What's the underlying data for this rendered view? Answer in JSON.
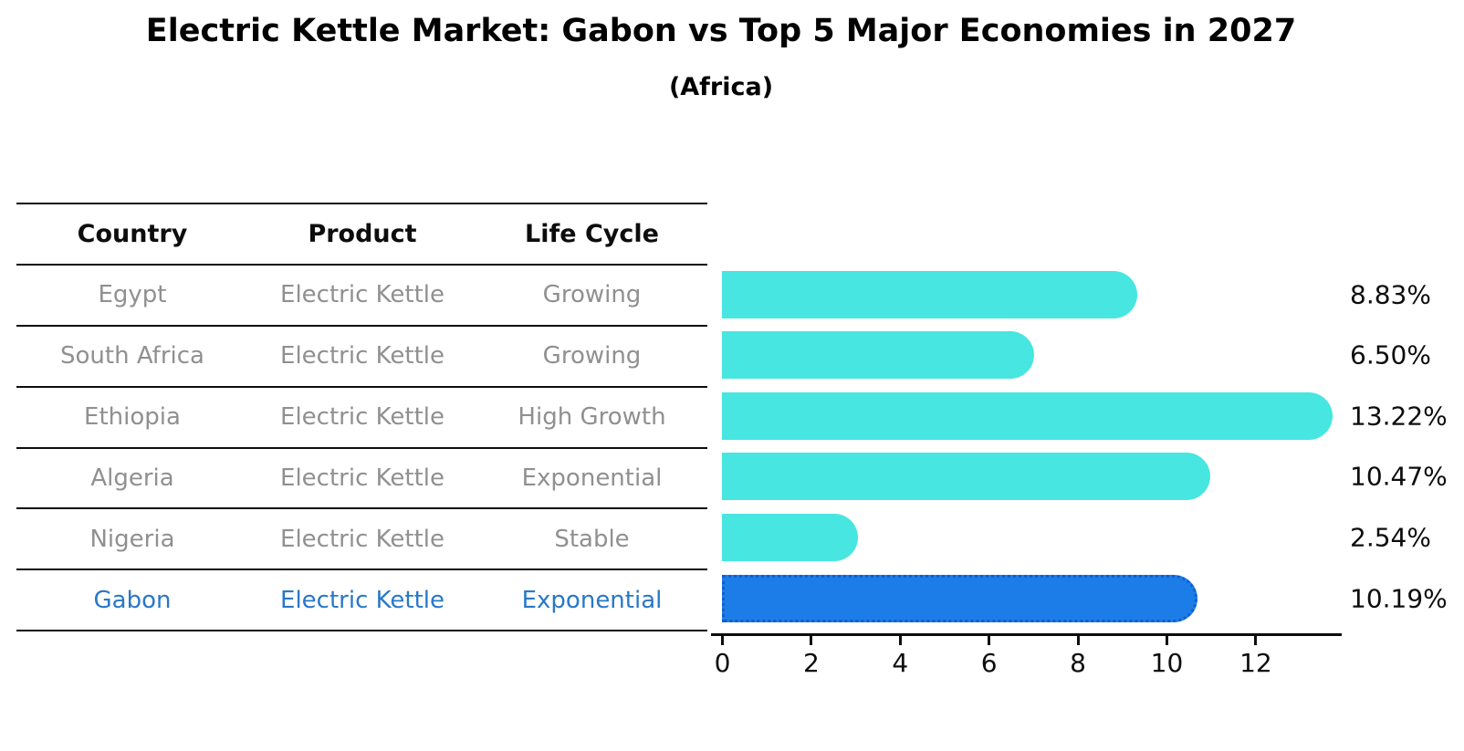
{
  "title": "Electric Kettle Market: Gabon vs Top 5 Major Economies in 2027",
  "subtitle": "(Africa)",
  "table": {
    "headers": [
      "Country",
      "Product",
      "Life Cycle"
    ],
    "rows": [
      {
        "country": "Egypt",
        "product": "Electric Kettle",
        "life_cycle": "Growing",
        "highlight": false
      },
      {
        "country": "South Africa",
        "product": "Electric Kettle",
        "life_cycle": "Growing",
        "highlight": false
      },
      {
        "country": "Ethiopia",
        "product": "Electric Kettle",
        "life_cycle": "High Growth",
        "highlight": false
      },
      {
        "country": "Algeria",
        "product": "Electric Kettle",
        "life_cycle": "Exponential",
        "highlight": false
      },
      {
        "country": "Nigeria",
        "product": "Electric Kettle",
        "life_cycle": "Stable",
        "highlight": false
      },
      {
        "country": "Gabon",
        "product": "Electric Kettle",
        "life_cycle": "Exponential",
        "highlight": true
      }
    ]
  },
  "chart_data": {
    "type": "bar",
    "orientation": "horizontal",
    "title": "Electric Kettle Market: Gabon vs Top 5 Major Economies in 2027",
    "subtitle": "(Africa)",
    "categories": [
      "Egypt",
      "South Africa",
      "Ethiopia",
      "Algeria",
      "Nigeria",
      "Gabon"
    ],
    "values": [
      8.83,
      6.5,
      13.22,
      10.47,
      2.54,
      10.19
    ],
    "value_labels": [
      "8.83%",
      "6.50%",
      "13.22%",
      "10.47%",
      "2.54%",
      "10.19%"
    ],
    "highlight_index": 5,
    "x_ticks": [
      0,
      2,
      4,
      6,
      8,
      10,
      12
    ],
    "xlim": [
      0,
      13.9
    ],
    "grid": false,
    "legend": "none",
    "colors": {
      "bar": "#47e6e0",
      "highlight_bar": "#1d7de8",
      "highlight_bar_border": "#0f5ecf",
      "highlight_text": "#2878c8",
      "row_text": "#909090",
      "axis_text": "#0d0d0d"
    }
  }
}
